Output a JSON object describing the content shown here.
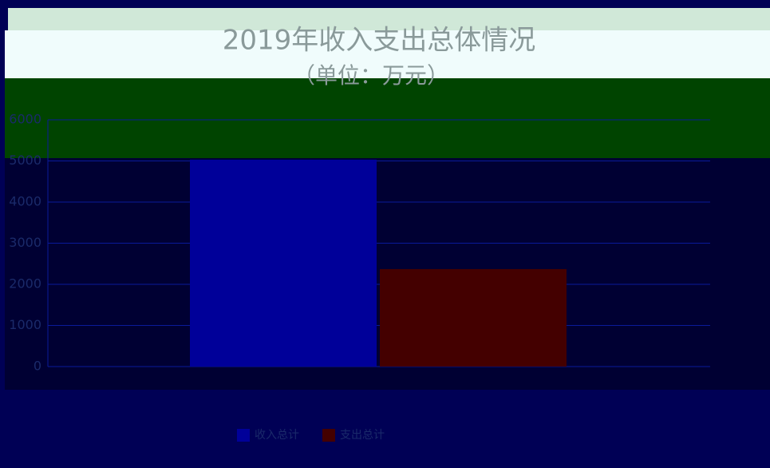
{
  "chart_data": {
    "type": "bar",
    "title": "2019年收入支出总体情况",
    "subtitle": "（单位：万元）",
    "categories": [
      null
    ],
    "series": [
      {
        "name": "收入总计",
        "color": "#000099",
        "values": [
          5030
        ]
      },
      {
        "name": "支出总计",
        "color": "#440000",
        "values": [
          2370
        ]
      }
    ],
    "ylim": [
      0,
      6000
    ],
    "yticks": [
      0,
      1000,
      2000,
      3000,
      4000,
      5000,
      6000
    ],
    "grid": true,
    "legend": "bottom"
  }
}
